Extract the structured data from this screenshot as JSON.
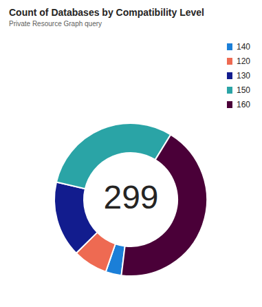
{
  "chart_data": {
    "type": "pie",
    "title": "Count of Databases by Compatibility Level",
    "subtitle": "Private Resource Graph query",
    "categories": [
      "140",
      "120",
      "130",
      "150",
      "160"
    ],
    "values": [
      10,
      22,
      48,
      90,
      129
    ],
    "colors": [
      "#1b7fd8",
      "#ee6a52",
      "#121c8e",
      "#2aa4a6",
      "#4a0038"
    ],
    "total": 299,
    "legend": "top-right"
  }
}
